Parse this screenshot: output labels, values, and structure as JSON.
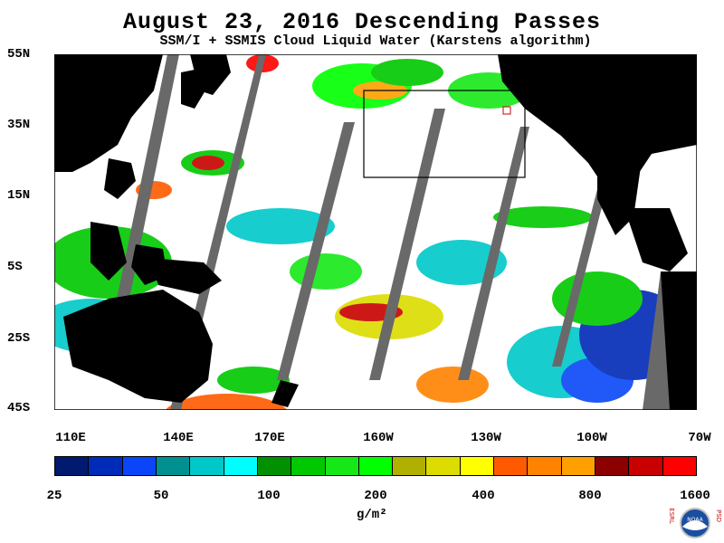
{
  "title": "August 23, 2016  Descending Passes",
  "subtitle": "SSM/I + SSMIS Cloud Liquid Water (Karstens algorithm)",
  "lat_labels": [
    "55N",
    "35N",
    "15N",
    "5S",
    "25S",
    "45S"
  ],
  "lon_labels": [
    "110E",
    "140E",
    "170E",
    "160W",
    "130W",
    "100W",
    "70W"
  ],
  "colorbar": {
    "colors": [
      "#001a70",
      "#002ab8",
      "#0a46f8",
      "#00908f",
      "#00c8c8",
      "#00fefe",
      "#009000",
      "#00c800",
      "#16e818",
      "#00ff00",
      "#b0b000",
      "#dcdc00",
      "#ffff00",
      "#ff5a00",
      "#ff8200",
      "#ffa000",
      "#8c0000",
      "#c80000",
      "#ff0000"
    ],
    "labels": [
      "25",
      "50",
      "100",
      "200",
      "400",
      "800",
      "1600"
    ],
    "units": "g/m²"
  },
  "logo": {
    "left_letters": "ESRL",
    "right_letters": "PSD",
    "center_text": "NOAA"
  },
  "colors": {
    "land": "#000000",
    "no_data": "#696969",
    "clear": "#ffffff"
  }
}
